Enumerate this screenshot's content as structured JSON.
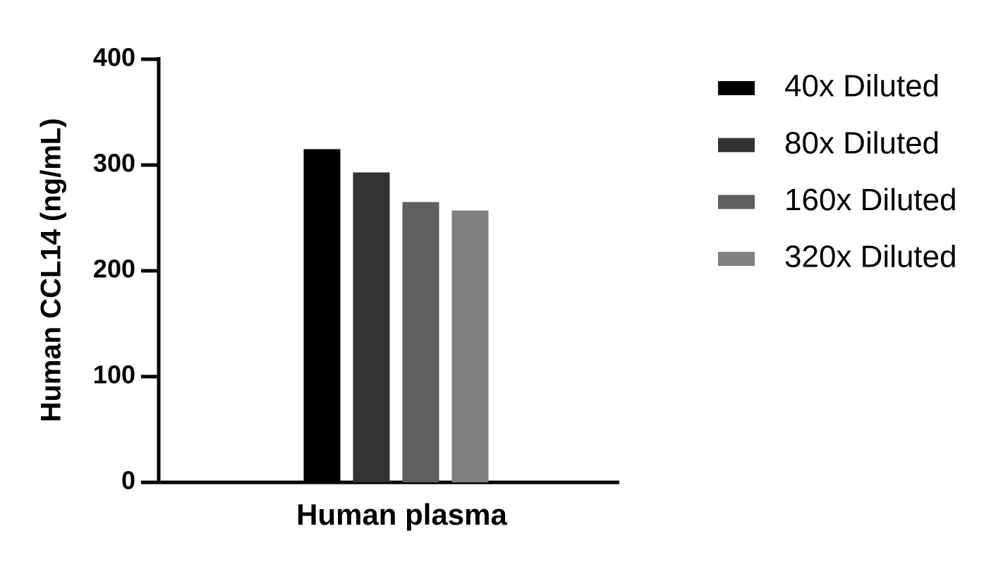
{
  "chart_data": {
    "type": "bar",
    "y_label": "Human CCL14 (ng/mL)",
    "categories": [
      "Human plasma"
    ],
    "series": [
      {
        "name": "40x Diluted",
        "color": "#000000",
        "values": [
          315
        ]
      },
      {
        "name": "80x Diluted",
        "color": "#333333",
        "values": [
          293
        ]
      },
      {
        "name": "160x Diluted",
        "color": "#5f5f5f",
        "values": [
          265
        ]
      },
      {
        "name": "320x Diluted",
        "color": "#808080",
        "values": [
          257
        ]
      }
    ],
    "ylim": [
      0,
      400
    ],
    "yticks": [
      0,
      100,
      200,
      300,
      400
    ],
    "grid": false,
    "legend": "right"
  }
}
